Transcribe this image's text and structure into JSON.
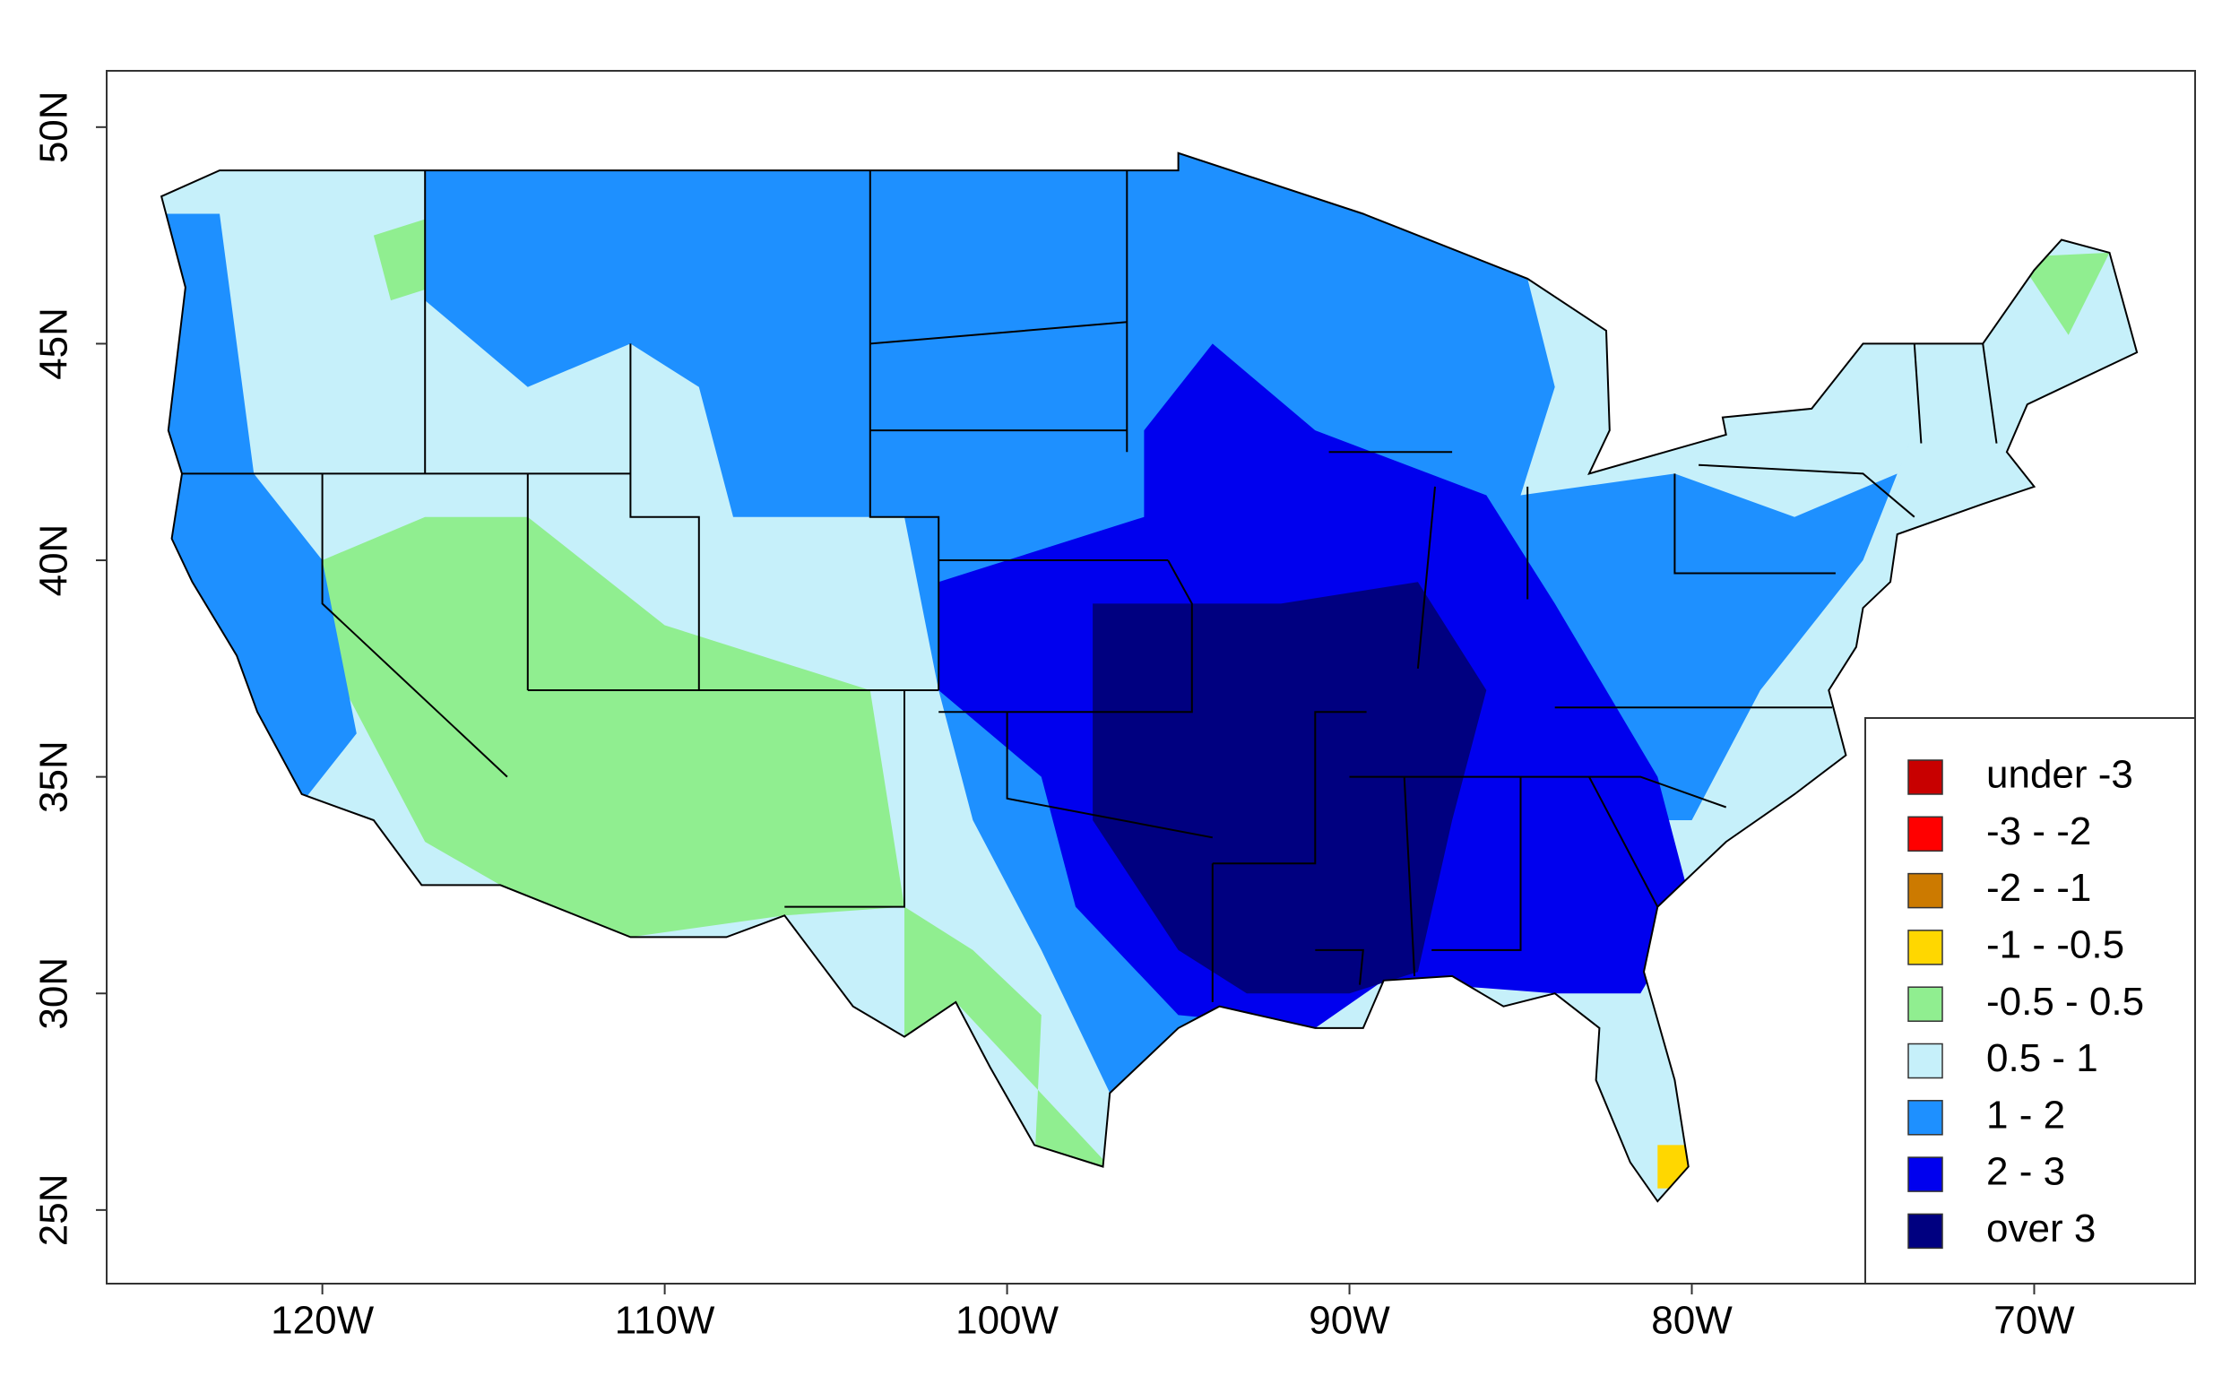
{
  "map": {
    "xlim": [
      -126.3,
      -65.3
    ],
    "ylim": [
      23.3,
      51.3
    ],
    "xticks": [
      {
        "value": -120,
        "label": "120W"
      },
      {
        "value": -110,
        "label": "110W"
      },
      {
        "value": -100,
        "label": "100W"
      },
      {
        "value": -90,
        "label": "90W"
      },
      {
        "value": -80,
        "label": "80W"
      },
      {
        "value": -70,
        "label": "70W"
      }
    ],
    "yticks": [
      {
        "value": 25,
        "label": "25N"
      },
      {
        "value": 30,
        "label": "30N"
      },
      {
        "value": 35,
        "label": "35N"
      },
      {
        "value": 40,
        "label": "40N"
      },
      {
        "value": 45,
        "label": "45N"
      },
      {
        "value": 50,
        "label": "50N"
      }
    ]
  },
  "legend": {
    "items": [
      {
        "label": "under -3",
        "color": "#c80000"
      },
      {
        "label": "-3 - -2",
        "color": "#ff0000"
      },
      {
        "label": "-2 - -1",
        "color": "#cc7a00"
      },
      {
        "label": "-1 - -0.5",
        "color": "#ffd700"
      },
      {
        "label": "-0.5 - 0.5",
        "color": "#90ee90"
      },
      {
        "label": "0.5 - 1",
        "color": "#c6f0fa"
      },
      {
        "label": "1 - 2",
        "color": "#1e90ff"
      },
      {
        "label": "2 - 3",
        "color": "#0000ee"
      },
      {
        "label": "over 3",
        "color": "#000080"
      }
    ]
  }
}
